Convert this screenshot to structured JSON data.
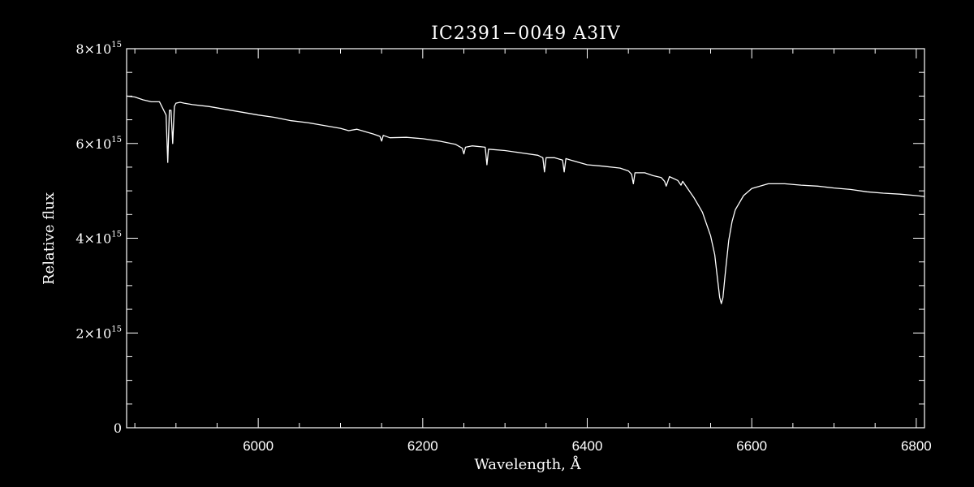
{
  "chart_data": {
    "type": "line",
    "title": "IC2391−0049   A3IV",
    "xlabel": "Wavelength, Å",
    "ylabel": "Relative flux",
    "xlim": [
      5840,
      6810
    ],
    "ylim": [
      0,
      8000000000000000.0
    ],
    "x_ticks": [
      6000,
      6200,
      6400,
      6600,
      6800
    ],
    "x_tick_labels": [
      "6000",
      "6200",
      "6400",
      "6600",
      "6800"
    ],
    "y_ticks": [
      {
        "value": 0,
        "mantissa": "0",
        "base": "",
        "exponent": ""
      },
      {
        "value": 2000000000000000.0,
        "mantissa": "2",
        "base": "×10",
        "exponent": "15"
      },
      {
        "value": 4000000000000000.0,
        "mantissa": "4",
        "base": "×10",
        "exponent": "15"
      },
      {
        "value": 6000000000000000.0,
        "mantissa": "6",
        "base": "×10",
        "exponent": "15"
      },
      {
        "value": 8000000000000000.0,
        "mantissa": "8",
        "base": "×10",
        "exponent": "15"
      }
    ],
    "grid": false,
    "legend": "none",
    "line_color": "#ffffff",
    "background_color": "#000000",
    "series": [
      {
        "x": [
          5840,
          5850,
          5860,
          5870,
          5880,
          5888,
          5890,
          5892,
          5894,
          5896,
          5898,
          5900,
          5905,
          5910,
          5920,
          5940,
          5960,
          5980,
          6000,
          6020,
          6040,
          6060,
          6080,
          6100,
          6110,
          6120,
          6140,
          6148,
          6150,
          6152,
          6160,
          6180,
          6200,
          6220,
          6240,
          6248,
          6250,
          6252,
          6260,
          6276,
          6278,
          6280,
          6300,
          6320,
          6340,
          6346,
          6348,
          6350,
          6360,
          6370,
          6372,
          6374,
          6380,
          6400,
          6420,
          6440,
          6450,
          6454,
          6456,
          6458,
          6470,
          6480,
          6490,
          6494,
          6496,
          6500,
          6510,
          6514,
          6516,
          6520,
          6530,
          6540,
          6550,
          6555,
          6558,
          6561,
          6563,
          6565,
          6568,
          6572,
          6576,
          6580,
          6590,
          6600,
          6620,
          6640,
          6660,
          6680,
          6700,
          6720,
          6740,
          6760,
          6780,
          6800,
          6810
        ],
        "y": [
          7000000000000000.0,
          6980000000000000.0,
          6920000000000000.0,
          6880000000000000.0,
          6880000000000000.0,
          6600000000000000.0,
          5600000000000000.0,
          6700000000000000.0,
          6700000000000000.0,
          6000000000000000.0,
          6780000000000000.0,
          6850000000000000.0,
          6870000000000000.0,
          6850000000000000.0,
          6820000000000000.0,
          6780000000000000.0,
          6720000000000000.0,
          6660000000000000.0,
          6600000000000000.0,
          6550000000000000.0,
          6480000000000000.0,
          6440000000000000.0,
          6380000000000000.0,
          6320000000000000.0,
          6270000000000000.0,
          6300000000000000.0,
          6200000000000000.0,
          6150000000000000.0,
          6050000000000000.0,
          6170000000000000.0,
          6120000000000000.0,
          6130000000000000.0,
          6100000000000000.0,
          6050000000000000.0,
          5980000000000000.0,
          5900000000000000.0,
          5780000000000000.0,
          5920000000000000.0,
          5950000000000000.0,
          5920000000000000.0,
          5550000000000000.0,
          5880000000000000.0,
          5850000000000000.0,
          5800000000000000.0,
          5750000000000000.0,
          5700000000000000.0,
          5400000000000000.0,
          5700000000000000.0,
          5700000000000000.0,
          5650000000000000.0,
          5400000000000000.0,
          5680000000000000.0,
          5650000000000000.0,
          5550000000000000.0,
          5520000000000000.0,
          5480000000000000.0,
          5420000000000000.0,
          5350000000000000.0,
          5150000000000000.0,
          5380000000000000.0,
          5380000000000000.0,
          5320000000000000.0,
          5280000000000000.0,
          5200000000000000.0,
          5100000000000000.0,
          5300000000000000.0,
          5220000000000000.0,
          5120000000000000.0,
          5200000000000000.0,
          5100000000000000.0,
          4850000000000000.0,
          4550000000000000.0,
          4050000000000000.0,
          3650000000000000.0,
          3200000000000000.0,
          2750000000000000.0,
          2620000000000000.0,
          2750000000000000.0,
          3300000000000000.0,
          3950000000000000.0,
          4350000000000000.0,
          4600000000000000.0,
          4900000000000000.0,
          5050000000000000.0,
          5150000000000000.0,
          5150000000000000.0,
          5120000000000000.0,
          5100000000000000.0,
          5060000000000000.0,
          5030000000000000.0,
          4980000000000000.0,
          4950000000000000.0,
          4930000000000000.0,
          4900000000000000.0,
          4880000000000000.0
        ]
      }
    ]
  }
}
